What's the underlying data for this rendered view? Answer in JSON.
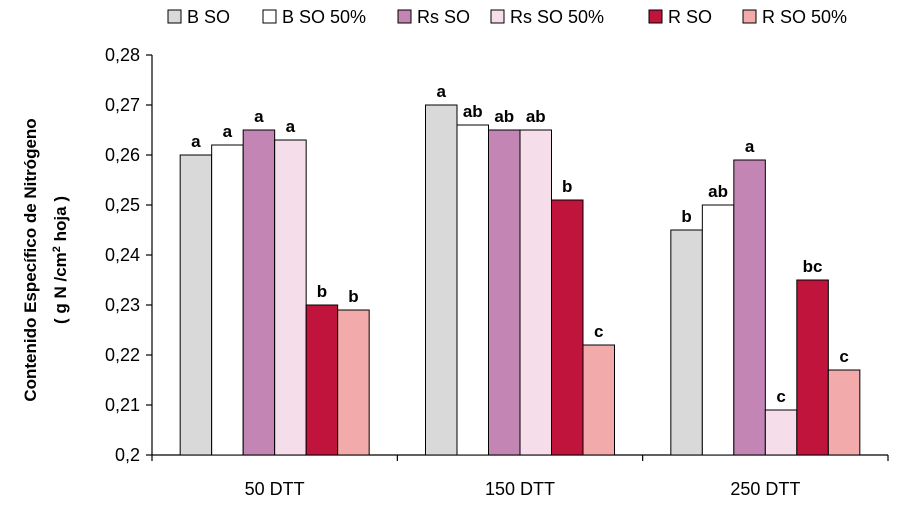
{
  "chart_data": {
    "type": "bar",
    "categories": [
      "50 DTT",
      "150 DTT",
      "250 DTT"
    ],
    "ylabel_line1": "Contenido Específico de Nitrógeno",
    "ylabel_line2_pre": "( g N /cm",
    "ylabel_line2_sup": "2",
    "ylabel_line2_post": " hoja )",
    "ylim": [
      0.2,
      0.28
    ],
    "yticks": [
      "0,2",
      "0,21",
      "0,22",
      "0,23",
      "0,24",
      "0,25",
      "0,26",
      "0,27",
      "0,28"
    ],
    "grid": false,
    "legend_position": "top",
    "series": [
      {
        "name": "B SO",
        "color": "#d9d9d9",
        "values": [
          0.26,
          0.27,
          0.245
        ],
        "labels": [
          "a",
          "a",
          "b"
        ]
      },
      {
        "name": "B SO 50%",
        "color": "#ffffff",
        "values": [
          0.262,
          0.266,
          0.25
        ],
        "labels": [
          "a",
          "ab",
          "ab"
        ]
      },
      {
        "name": "Rs SO",
        "color": "#c386b4",
        "values": [
          0.265,
          0.265,
          0.259
        ],
        "labels": [
          "a",
          "ab",
          "a"
        ]
      },
      {
        "name": "Rs SO 50%",
        "color": "#f5dde9",
        "values": [
          0.263,
          0.265,
          0.209
        ],
        "labels": [
          "a",
          "ab",
          "c"
        ]
      },
      {
        "name": "R SO",
        "color": "#c0143c",
        "values": [
          0.23,
          0.251,
          0.235
        ],
        "labels": [
          "b",
          "b",
          "bc"
        ]
      },
      {
        "name": "R SO 50%",
        "color": "#f2aaaa",
        "values": [
          0.229,
          0.222,
          0.217
        ],
        "labels": [
          "b",
          "c",
          "c"
        ]
      }
    ]
  }
}
